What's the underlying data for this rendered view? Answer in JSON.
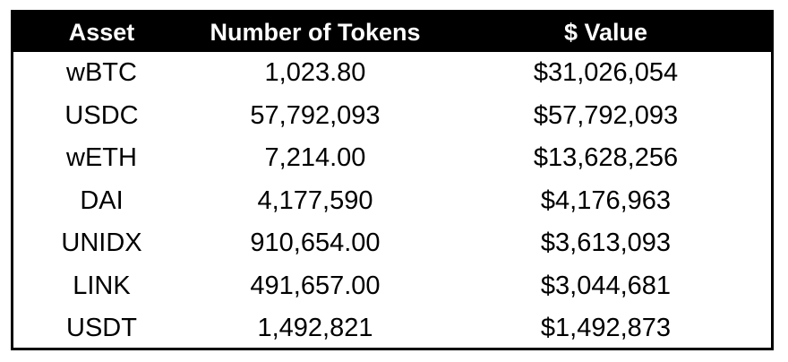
{
  "table": {
    "headers": {
      "asset": "Asset",
      "tokens": "Number of Tokens",
      "value": "$ Value"
    },
    "rows": [
      {
        "asset": "wBTC",
        "tokens": "1,023.80",
        "value": "$31,026,054"
      },
      {
        "asset": "USDC",
        "tokens": "57,792,093",
        "value": "$57,792,093"
      },
      {
        "asset": "wETH",
        "tokens": "7,214.00",
        "value": "$13,628,256"
      },
      {
        "asset": "DAI",
        "tokens": "4,177,590",
        "value": "$4,176,963"
      },
      {
        "asset": "UNIDX",
        "tokens": "910,654.00",
        "value": "$3,613,093"
      },
      {
        "asset": "LINK",
        "tokens": "491,657.00",
        "value": "$3,044,681"
      },
      {
        "asset": "USDT",
        "tokens": "1,492,821",
        "value": "$1,492,873"
      }
    ]
  },
  "colors": {
    "header_background": "#000000",
    "header_text": "#ffffff",
    "cell_text": "#000000",
    "border": "#000000"
  }
}
